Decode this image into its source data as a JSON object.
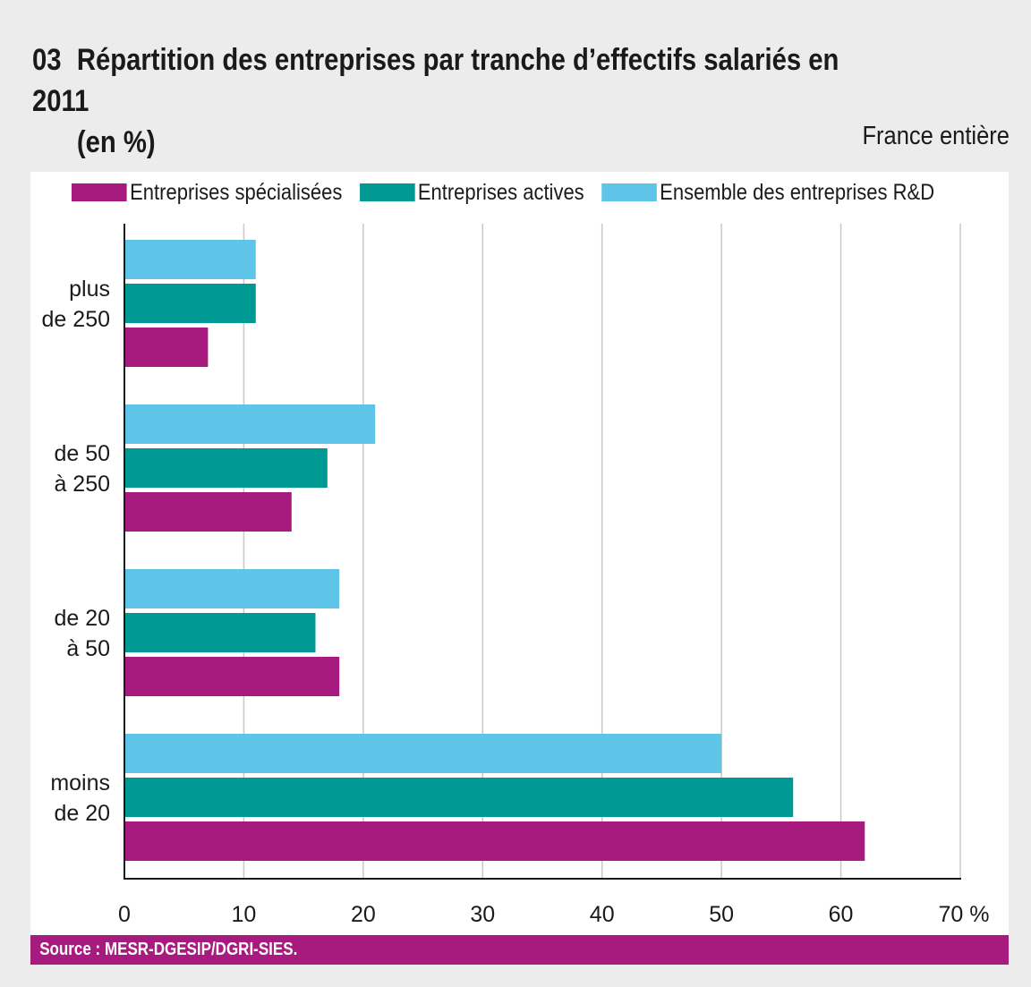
{
  "header": {
    "number": "03",
    "title_line1": "Répartition des entreprises par tranche d’effectifs salariés en 2011",
    "title_line2": "(en %)",
    "subtitle": "France entière"
  },
  "footer": {
    "source": "Source : MESR-DGESIP/DGRI-SIES."
  },
  "colors": {
    "specialisees": "#a81b7e",
    "actives": "#009994",
    "ensemble": "#5fc5e8",
    "background": "#ececec",
    "source_bar": "#a81b7e"
  },
  "chart_data": {
    "type": "bar",
    "orientation": "horizontal",
    "title": "Répartition des entreprises par tranche d’effectifs salariés en 2011 (en %)",
    "subtitle": "France entière",
    "xlabel": "",
    "ylabel": "",
    "xlim": [
      0,
      70
    ],
    "x_ticks": [
      0,
      10,
      20,
      30,
      40,
      50,
      60,
      70
    ],
    "x_tick_labels": [
      "0",
      "10",
      "20",
      "30",
      "40",
      "50",
      "60",
      "70 %"
    ],
    "grid": true,
    "legend_position": "top",
    "categories": [
      {
        "line1": "plus",
        "line2": "de 250"
      },
      {
        "line1": "de 50",
        "line2": "à 250"
      },
      {
        "line1": "de 20",
        "line2": "à 50"
      },
      {
        "line1": "moins",
        "line2": "de 20"
      }
    ],
    "series": [
      {
        "name": "Ensemble des entreprises R&D",
        "key": "ensemble",
        "values": [
          11,
          21,
          18,
          50
        ]
      },
      {
        "name": "Entreprises actives",
        "key": "actives",
        "values": [
          11,
          17,
          16,
          56
        ]
      },
      {
        "name": "Entreprises spécialisées",
        "key": "specialisees",
        "values": [
          7,
          14,
          18,
          62
        ]
      }
    ],
    "legend": [
      {
        "name": "Entreprises spécialisées",
        "key": "specialisees"
      },
      {
        "name": "Entreprises actives",
        "key": "actives"
      },
      {
        "name": "Ensemble des entreprises R&D",
        "key": "ensemble"
      }
    ]
  }
}
